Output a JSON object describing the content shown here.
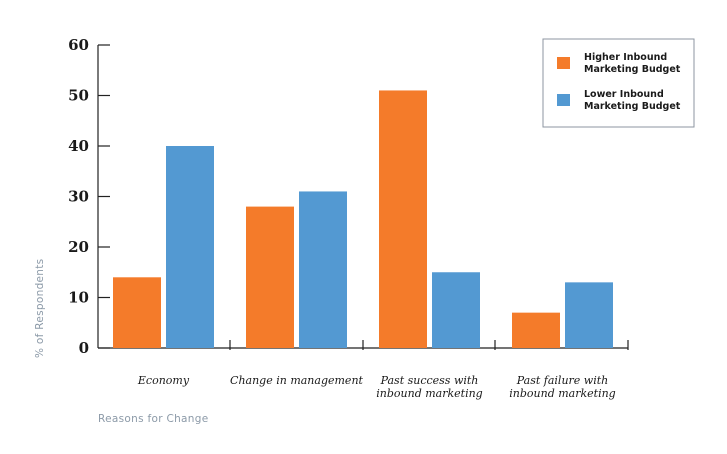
{
  "chart_data": {
    "type": "bar",
    "categories": [
      [
        "Economy"
      ],
      [
        "Change in management"
      ],
      [
        "Past success with",
        "inbound marketing"
      ],
      [
        "Past failure with",
        "inbound marketing"
      ]
    ],
    "series": [
      {
        "name": "Higher Inbound Marketing Budget",
        "legend_lines": [
          "Higher Inbound",
          "Marketing Budget"
        ],
        "color": "#f47b2a",
        "values": [
          14,
          28,
          51,
          7
        ]
      },
      {
        "name": "Lower Inbound Marketing Budget",
        "legend_lines": [
          "Lower Inbound",
          "Marketing Budget"
        ],
        "color": "#5399d2",
        "values": [
          40,
          31,
          15,
          13
        ]
      }
    ],
    "yticks": [
      0,
      10,
      20,
      30,
      40,
      50,
      60
    ],
    "ylim": [
      0,
      60
    ],
    "xlabel": "Reasons for Change",
    "ylabel": "% of Respondents",
    "legend_position": "top-right",
    "grid": false
  }
}
